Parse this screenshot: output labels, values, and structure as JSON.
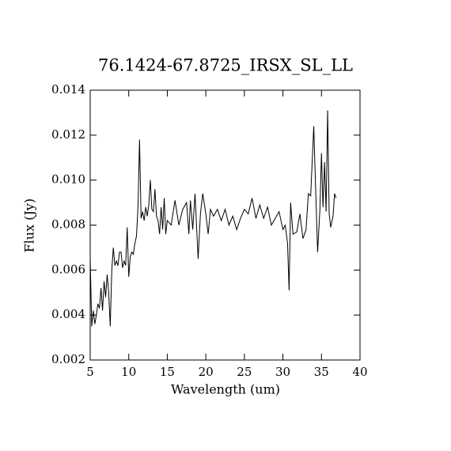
{
  "chart_data": {
    "type": "line",
    "title": "76.1424-67.8725_IRSX_SL_LL",
    "x_label": "Wavelength (um)",
    "y_label": "Flux (Jy)",
    "xlim": [
      5,
      40
    ],
    "ylim": [
      0.002,
      0.014
    ],
    "xticks": [
      5,
      10,
      15,
      20,
      25,
      30,
      35,
      40
    ],
    "yticks": [
      0.002,
      0.004,
      0.006,
      0.008,
      {
        "value": 0.01,
        "label": "0.010"
      },
      0.012,
      0.014
    ],
    "x": [
      5.0,
      5.2,
      5.4,
      5.6,
      5.8,
      6.0,
      6.2,
      6.4,
      6.6,
      6.8,
      7.0,
      7.2,
      7.4,
      7.6,
      7.8,
      8.0,
      8.2,
      8.4,
      8.6,
      8.8,
      9.0,
      9.2,
      9.4,
      9.6,
      9.8,
      10.0,
      10.2,
      10.4,
      10.6,
      10.8,
      11.0,
      11.2,
      11.4,
      11.6,
      11.8,
      12.0,
      12.2,
      12.4,
      12.6,
      12.8,
      13.0,
      13.2,
      13.4,
      13.6,
      13.8,
      14.0,
      14.2,
      14.4,
      14.6,
      14.8,
      15.0,
      15.5,
      16.0,
      16.5,
      17.0,
      17.5,
      17.8,
      18.0,
      18.3,
      18.6,
      19.0,
      19.3,
      19.6,
      20.0,
      20.3,
      20.6,
      21.0,
      21.5,
      22.0,
      22.5,
      23.0,
      23.5,
      24.0,
      24.5,
      25.0,
      25.5,
      26.0,
      26.5,
      27.0,
      27.5,
      28.0,
      28.5,
      29.0,
      29.5,
      30.0,
      30.3,
      30.6,
      30.8,
      31.0,
      31.3,
      31.8,
      32.2,
      32.6,
      33.0,
      33.3,
      33.6,
      34.0,
      34.3,
      34.5,
      34.8,
      35.0,
      35.2,
      35.4,
      35.6,
      35.8,
      36.0,
      36.2,
      36.5,
      36.7,
      36.9
    ],
    "series": [
      {
        "color": "#000000",
        "values": [
          0.0065,
          0.0035,
          0.0042,
          0.0036,
          0.004,
          0.0045,
          0.0043,
          0.0052,
          0.0042,
          0.0055,
          0.0048,
          0.0058,
          0.005,
          0.0035,
          0.006,
          0.007,
          0.0062,
          0.0064,
          0.0062,
          0.0068,
          0.0068,
          0.0061,
          0.0064,
          0.0062,
          0.0079,
          0.0057,
          0.0066,
          0.0068,
          0.0067,
          0.0072,
          0.0075,
          0.0088,
          0.0118,
          0.0083,
          0.0086,
          0.0082,
          0.0088,
          0.0084,
          0.0089,
          0.01,
          0.0087,
          0.0086,
          0.0096,
          0.0084,
          0.0082,
          0.0076,
          0.0088,
          0.0078,
          0.0092,
          0.0076,
          0.0082,
          0.008,
          0.0091,
          0.008,
          0.0087,
          0.009,
          0.0076,
          0.0091,
          0.0078,
          0.0094,
          0.0065,
          0.0085,
          0.0094,
          0.0085,
          0.0076,
          0.0087,
          0.0084,
          0.0087,
          0.0082,
          0.0087,
          0.008,
          0.0084,
          0.0078,
          0.0083,
          0.0087,
          0.0085,
          0.0092,
          0.0083,
          0.0089,
          0.0083,
          0.0088,
          0.008,
          0.0083,
          0.0086,
          0.0078,
          0.008,
          0.0072,
          0.0051,
          0.009,
          0.0076,
          0.0077,
          0.0085,
          0.0074,
          0.0078,
          0.0094,
          0.0093,
          0.0124,
          0.009,
          0.0068,
          0.0087,
          0.0112,
          0.0088,
          0.0108,
          0.0086,
          0.0131,
          0.0085,
          0.0079,
          0.0084,
          0.0094,
          0.0092
        ]
      }
    ]
  }
}
